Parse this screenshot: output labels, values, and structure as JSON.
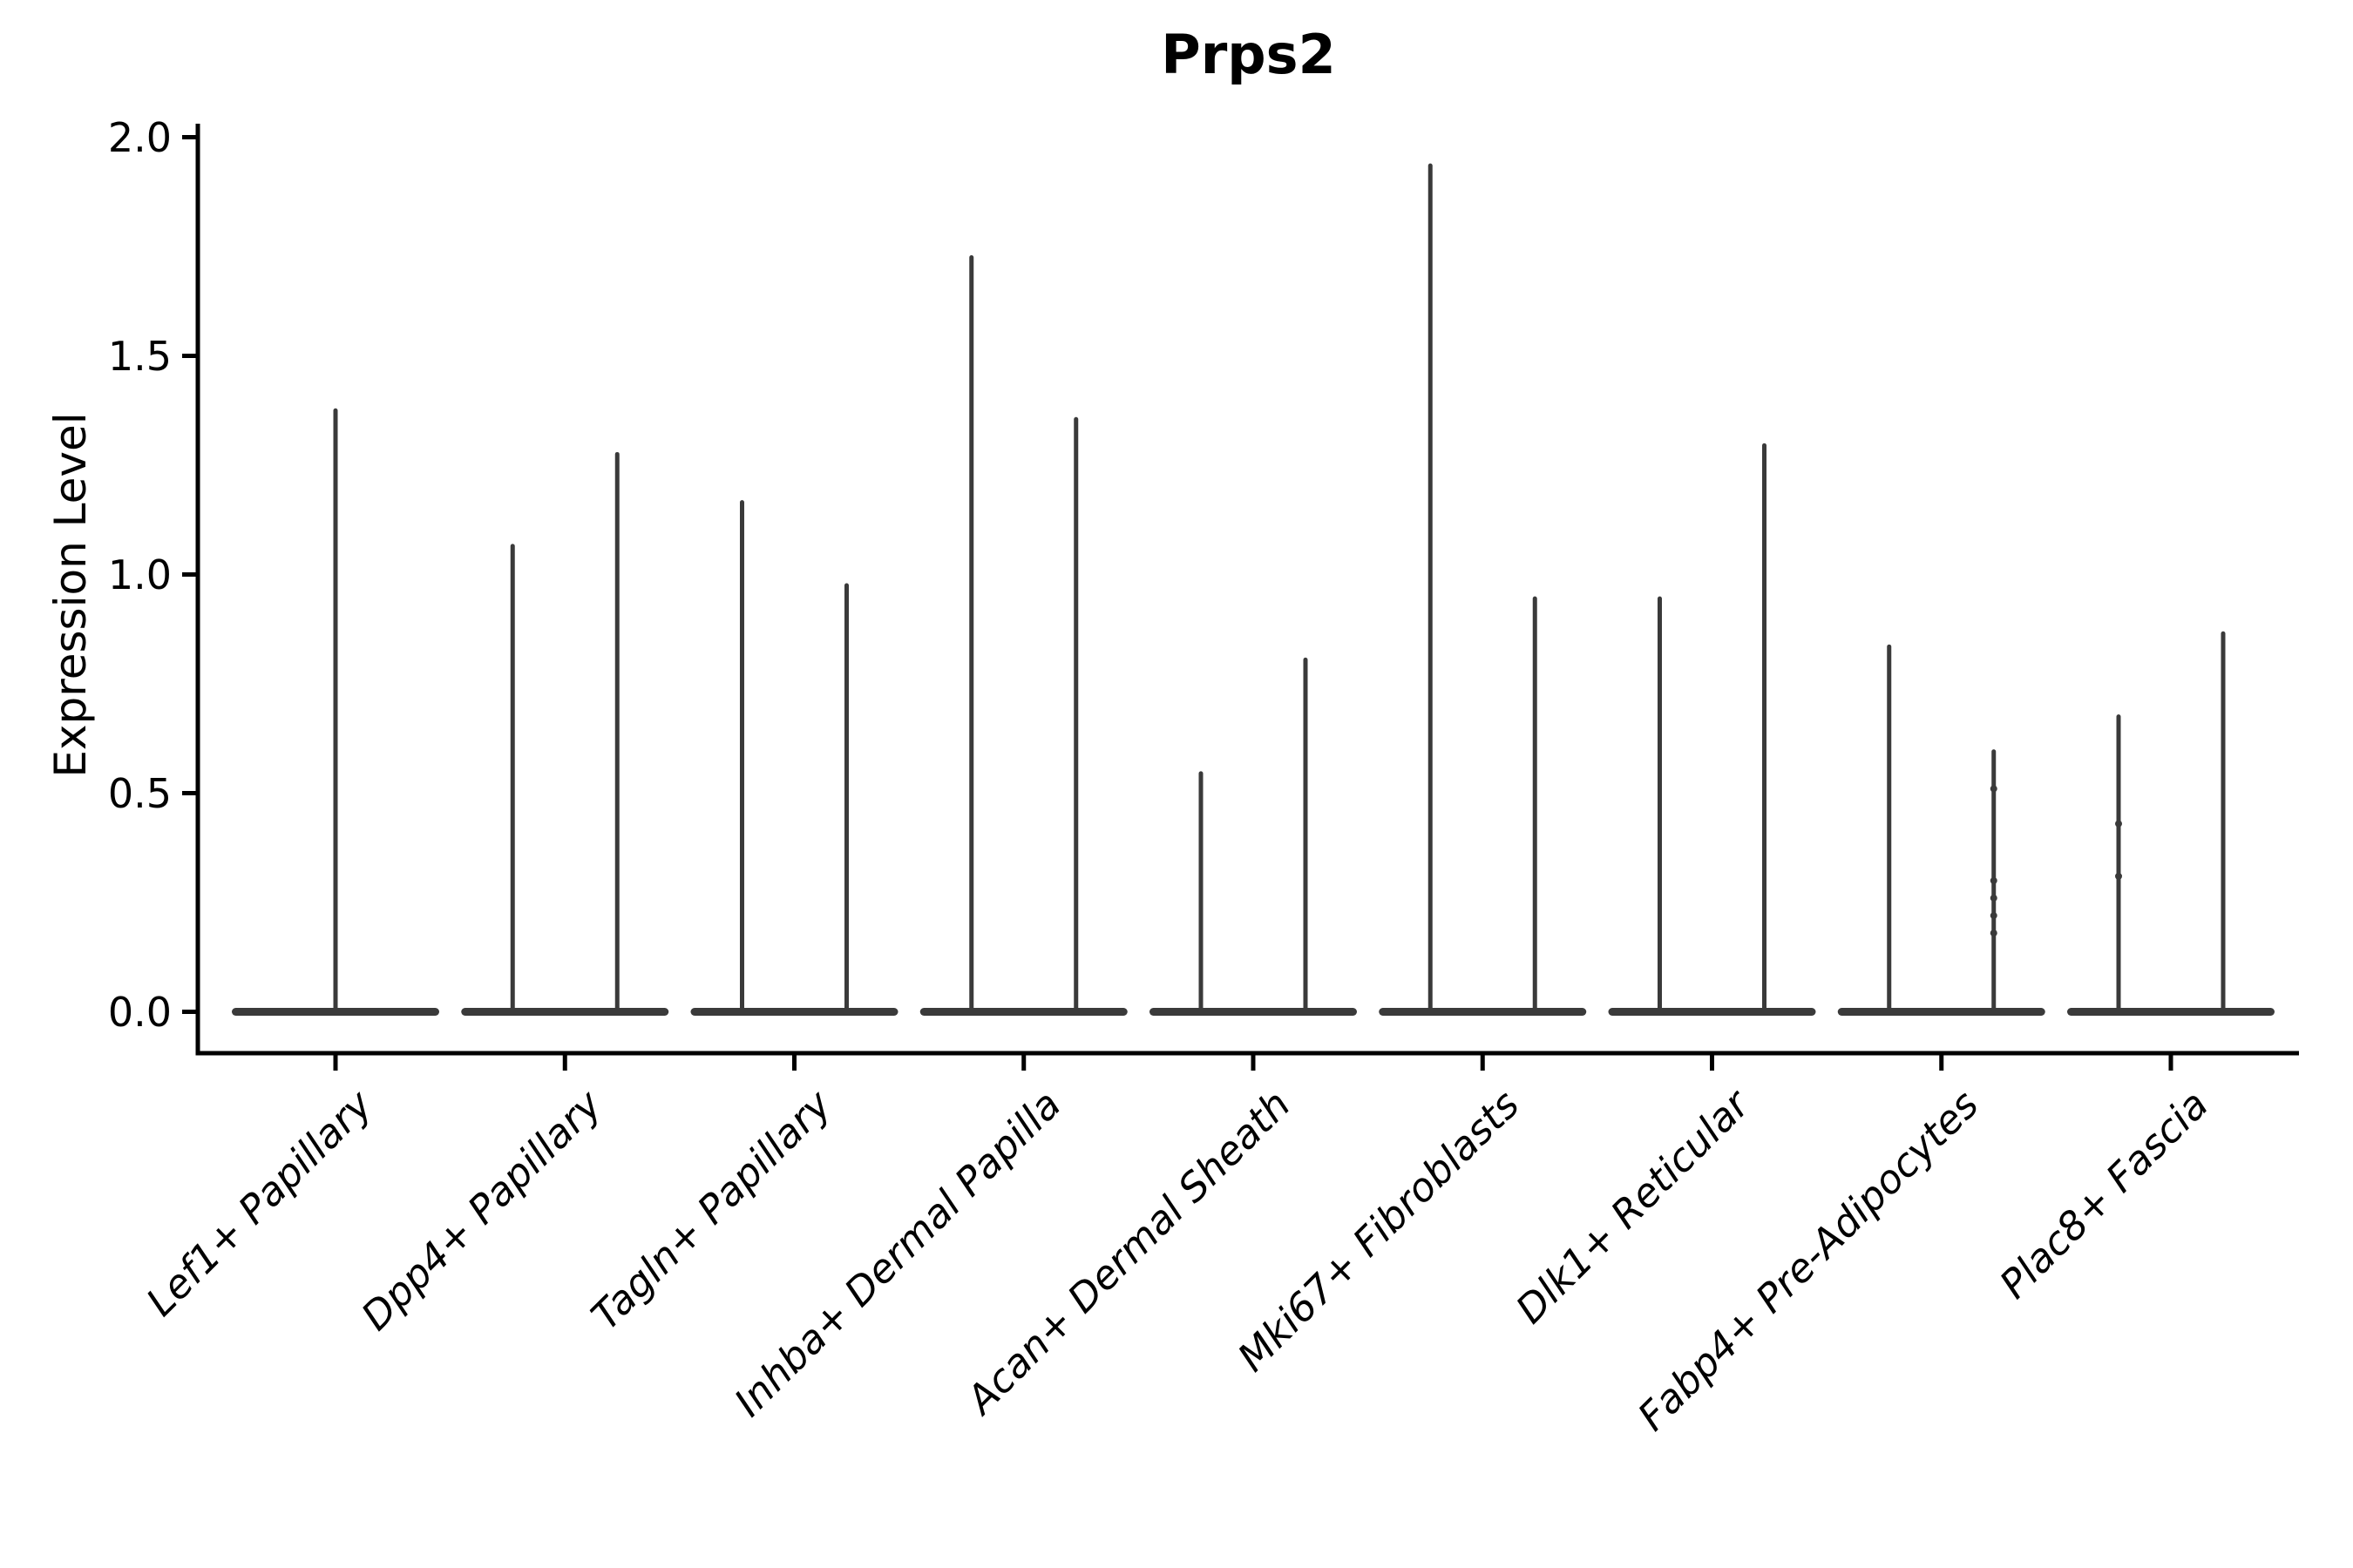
{
  "chart_data": {
    "type": "violin",
    "title": "Prps2",
    "ylabel": "Expression Level",
    "xlabel": "",
    "ylim": [
      0.0,
      2.0
    ],
    "yticks": [
      0.0,
      0.5,
      1.0,
      1.5,
      2.0
    ],
    "ytick_labels": [
      "0.0",
      "0.5",
      "1.0",
      "1.5",
      "2.0"
    ],
    "grid": false,
    "legend": false,
    "categories": [
      "Lef1+ Papillary",
      "Dpp4+ Papillary",
      "Tagln+ Papillary",
      "Inhba+ Dermal Papilla",
      "Acan+ Dermal Sheath",
      "Mki67+ Fibroblasts",
      "Dlk1+ Reticular",
      "Fabp4+ Pre-Adipocytes",
      "Plac8+ Fascia"
    ],
    "violins": [
      {
        "category": "Lef1+ Papillary",
        "group_maxima": [
          1.38
        ],
        "dots": [
          []
        ]
      },
      {
        "category": "Dpp4+ Papillary",
        "group_maxima": [
          1.07,
          1.28
        ],
        "dots": [
          [],
          []
        ]
      },
      {
        "category": "Tagln+ Papillary",
        "group_maxima": [
          1.17,
          0.98
        ],
        "dots": [
          [],
          []
        ]
      },
      {
        "category": "Inhba+ Dermal Papilla",
        "group_maxima": [
          1.73,
          1.36
        ],
        "dots": [
          [],
          []
        ]
      },
      {
        "category": "Acan+ Dermal Sheath",
        "group_maxima": [
          0.55,
          0.81
        ],
        "dots": [
          [],
          []
        ]
      },
      {
        "category": "Mki67+ Fibroblasts",
        "group_maxima": [
          1.94,
          0.95
        ],
        "dots": [
          [],
          []
        ]
      },
      {
        "category": "Dlk1+ Reticular",
        "group_maxima": [
          0.95,
          1.3
        ],
        "dots": [
          [],
          []
        ]
      },
      {
        "category": "Fabp4+ Pre-Adipocytes",
        "group_maxima": [
          0.84,
          0.6
        ],
        "dots": [
          [],
          [
            0.51,
            0.3,
            0.26,
            0.22,
            0.18
          ]
        ]
      },
      {
        "category": "Plac8+ Fascia",
        "group_maxima": [
          0.68,
          0.87
        ],
        "dots": [
          [
            0.43,
            0.31
          ],
          []
        ]
      }
    ],
    "shape_note": "Each violin is a flat wide base at expression 0 with a thin vertical needle rising to the group maximum"
  },
  "colors": {
    "violin": "#3a3a3a",
    "axis": "#000000",
    "text": "#000000",
    "background": "#ffffff"
  }
}
